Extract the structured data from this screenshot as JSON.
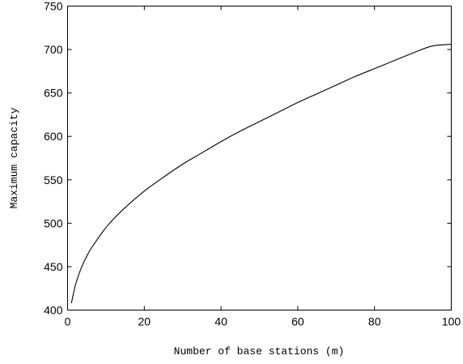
{
  "chart_data": {
    "type": "line",
    "title": "",
    "xlabel": "Number of base stations (m)",
    "ylabel": "Maximum capacity",
    "xlim": [
      0,
      100
    ],
    "ylim": [
      400,
      750
    ],
    "xticks": [
      0,
      20,
      40,
      60,
      80,
      100
    ],
    "yticks": [
      400,
      450,
      500,
      550,
      600,
      650,
      700,
      750
    ],
    "grid": false,
    "legend": "none",
    "line_color": "#000000",
    "series": [
      {
        "x": [
          1,
          2,
          3,
          4,
          5,
          6,
          8,
          10,
          12,
          15,
          20,
          25,
          30,
          35,
          40,
          45,
          50,
          55,
          60,
          65,
          70,
          75,
          80,
          85,
          90,
          95,
          100
        ],
        "values": [
          408,
          428,
          442,
          453,
          462,
          470,
          483,
          495,
          505,
          518,
          537,
          553,
          568,
          581,
          594,
          606,
          617,
          628,
          639,
          649,
          659,
          669,
          678,
          687,
          696,
          704,
          706
        ]
      }
    ]
  }
}
